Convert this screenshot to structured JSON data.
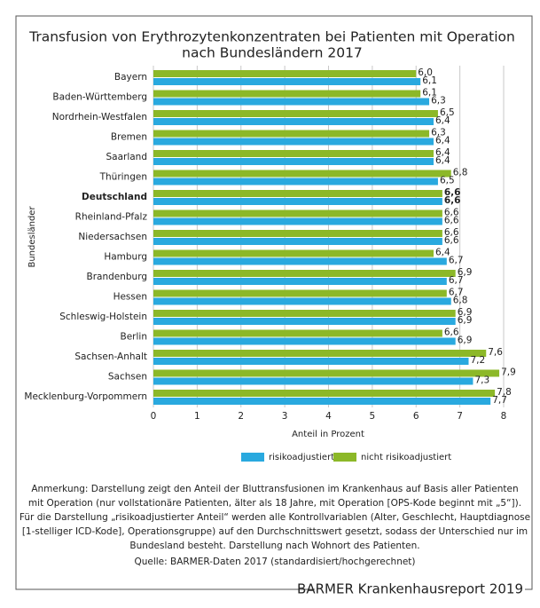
{
  "chart_data": {
    "type": "bar",
    "orientation": "horizontal",
    "title": [
      "Transfusion von Erythrozytenkonzentraten bei Patienten mit Operation",
      "nach Bundesländern 2017"
    ],
    "y_label": "Bundesländer",
    "x_label": "Anteil in Prozent",
    "categories": [
      "Bayern",
      "Baden-Württemberg",
      "Nordrhein-Westfalen",
      "Bremen",
      "Saarland",
      "Thüringen",
      "Deutschland",
      "Rheinland-Pfalz",
      "Niedersachsen",
      "Hamburg",
      "Brandenburg",
      "Hessen",
      "Schleswig-Holstein",
      "Berlin",
      "Sachsen-Anhalt",
      "Sachsen",
      "Mecklenburg-Vorpommern"
    ],
    "emphasized_category_index": 6,
    "series": [
      {
        "name": "risikoadjustiert",
        "color": "#29a9df",
        "values": [
          6.1,
          6.3,
          6.4,
          6.4,
          6.4,
          6.5,
          6.6,
          6.6,
          6.6,
          6.7,
          6.7,
          6.8,
          6.9,
          6.9,
          7.2,
          7.3,
          7.7
        ],
        "value_labels": [
          "6,1",
          "6,3",
          "6,4",
          "6,4",
          "6,4",
          "6,5",
          "6,6",
          "6,6",
          "6,6",
          "6,7",
          "6,7",
          "6,8",
          "6,9",
          "6,9",
          "7,2",
          "7,3",
          "7,7"
        ]
      },
      {
        "name": "nicht risikoadjustiert",
        "color": "#8cb828",
        "values": [
          6.0,
          6.1,
          6.5,
          6.3,
          6.4,
          6.8,
          6.6,
          6.6,
          6.6,
          6.4,
          6.9,
          6.7,
          6.9,
          6.6,
          7.6,
          7.9,
          7.8
        ],
        "value_labels": [
          "6,0",
          "6,1",
          "6,5",
          "6,3",
          "6,4",
          "6,8",
          "6,6",
          "6,6",
          "6,6",
          "6,4",
          "6,9",
          "6,7",
          "6,9",
          "6,6",
          "7,6",
          "7,9",
          "7,8"
        ]
      }
    ],
    "xlim": [
      0,
      8
    ],
    "xticks": [
      0,
      1,
      2,
      3,
      4,
      5,
      6,
      7,
      8
    ],
    "grid": true,
    "legend_position": "bottom",
    "notes": [
      "Anmerkung: Darstellung zeigt den Anteil der Bluttransfusionen im Krankenhaus auf Basis aller Patienten",
      "mit Operation (nur vollstationäre Patienten, älter als 18 Jahre, mit Operation [OPS-Kode beginnt mit „5“]).",
      "Für die Darstellung „risikoadjustierter Anteil“ werden alle Kontrollvariablen (Alter, Geschlecht, Hauptdiagnose",
      "[1-stelliger ICD-Kode], Operationsgruppe) auf den Durchschnittswert gesetzt, sodass der Unterschied nur im",
      "Bundesland besteht. Darstellung nach Wohnort des Patienten."
    ],
    "source": "Quelle: BARMER-Daten 2017 (standardisiert/hochgerechnet)",
    "footer": "BARMER Krankenhausreport 2019"
  }
}
